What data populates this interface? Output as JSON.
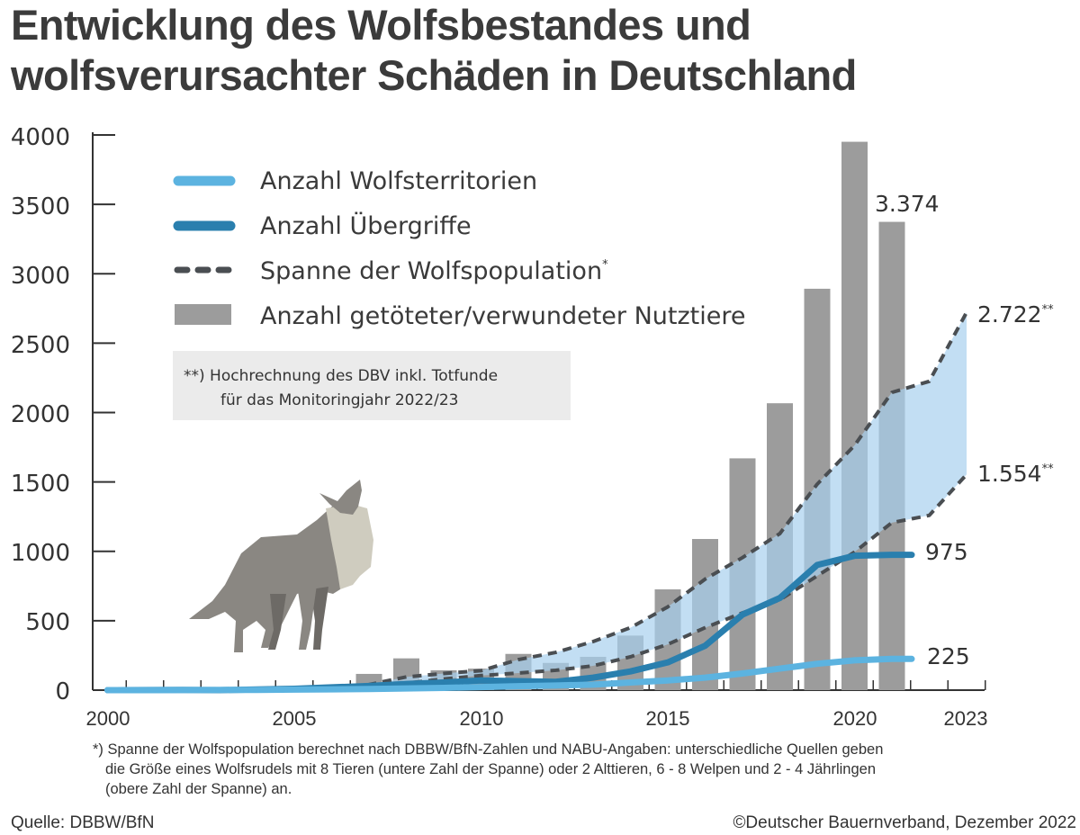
{
  "chart_data": {
    "type": "bar",
    "title": "Entwicklung des Wolfsbestandes und wolfsverursachter Schäden in Deutschland",
    "title_lines": [
      "Entwicklung des Wolfsbestandes und",
      "wolfsverursachter Schäden in Deutschland"
    ],
    "xlabel": "",
    "ylabel": "",
    "ylim": [
      0,
      4000
    ],
    "y_ticks": [
      "0",
      "500",
      "1000",
      "1500",
      "2000",
      "2500",
      "3000",
      "3500",
      "4000"
    ],
    "x_range": [
      2000,
      2023
    ],
    "x_ticks": [
      "2000",
      "2005",
      "2010",
      "2015",
      "2020",
      "2023"
    ],
    "grid": false,
    "legend_position": "top-left",
    "series": [
      {
        "name": "Anzahl Wolfsterritorien",
        "type": "line",
        "color": "#5cb3e0",
        "x": [
          2000,
          2002,
          2004,
          2005,
          2006,
          2007,
          2008,
          2009,
          2010,
          2011,
          2012,
          2013,
          2014,
          2015,
          2016,
          2017,
          2018,
          2019,
          2020,
          2021
        ],
        "values": [
          0,
          1,
          2,
          4,
          6,
          8,
          12,
          16,
          22,
          28,
          33,
          40,
          55,
          70,
          90,
          120,
          155,
          190,
          215,
          225
        ]
      },
      {
        "name": "Anzahl Übergriffe",
        "type": "line",
        "color": "#2a7fae",
        "x": [
          2000,
          2002,
          2003,
          2004,
          2005,
          2006,
          2007,
          2008,
          2009,
          2010,
          2011,
          2012,
          2013,
          2014,
          2015,
          2016,
          2017,
          2018,
          2019,
          2020,
          2021
        ],
        "values": [
          0,
          2,
          0,
          5,
          10,
          20,
          30,
          45,
          55,
          70,
          65,
          60,
          90,
          135,
          200,
          320,
          544,
          664,
          902,
          968,
          975
        ]
      },
      {
        "name": "Spanne der Wolfspopulation",
        "type": "line-range-upper",
        "color": "#4a4e52",
        "x": [
          2000,
          2003,
          2004,
          2005,
          2006,
          2007,
          2008,
          2009,
          2010,
          2011,
          2012,
          2013,
          2014,
          2015,
          2016,
          2017,
          2018,
          2019,
          2020,
          2021,
          2022,
          2023
        ],
        "values": [
          0,
          0,
          5,
          10,
          20,
          40,
          95,
          120,
          140,
          220,
          272,
          350,
          450,
          600,
          800,
          955,
          1128,
          1484,
          1763,
          2145,
          2225,
          2722
        ]
      },
      {
        "name": "Spanne der Wolfspopulation",
        "type": "line-range-lower",
        "color": "#4a4e52",
        "x": [
          2000,
          2003,
          2004,
          2005,
          2006,
          2007,
          2008,
          2009,
          2010,
          2011,
          2012,
          2013,
          2014,
          2015,
          2016,
          2017,
          2018,
          2019,
          2020,
          2021,
          2022,
          2023
        ],
        "values": [
          0,
          0,
          2,
          5,
          10,
          20,
          50,
          80,
          105,
          123,
          143,
          175,
          240,
          330,
          450,
          557,
          651,
          823,
          995,
          1207,
          1259,
          1554
        ]
      },
      {
        "name": "Anzahl getöteter/verwundeter Nutztiere",
        "type": "bar",
        "color": "#9c9c9c",
        "x": [
          2007,
          2008,
          2009,
          2010,
          2011,
          2012,
          2013,
          2014,
          2015,
          2016,
          2017,
          2018,
          2019,
          2020,
          2021
        ],
        "values": [
          117,
          229,
          143,
          155,
          261,
          196,
          240,
          393,
          726,
          1089,
          1670,
          2067,
          2892,
          3951,
          3374
        ]
      }
    ],
    "range_fill_color": "#a8d0ee",
    "legend": [
      {
        "label": "Anzahl Wolfsterritorien",
        "marker": "line-light-blue"
      },
      {
        "label": "Anzahl Übergriffe",
        "marker": "line-dark-blue"
      },
      {
        "label": "Spanne der Wolfspopulation",
        "sup": "*",
        "marker": "dashed-line"
      },
      {
        "label": "Anzahl getöteter/verwundeter Nutztiere",
        "marker": "gray-bar"
      }
    ],
    "annotations": {
      "bars_2021": "3.374",
      "upper_2023": "2.722",
      "lower_2023": "1.554",
      "estimate_mark": "**",
      "uebergriffe_2021": "975",
      "territorien_2021": "225"
    },
    "note_box": {
      "line1": "**) Hochrechnung des DBV inkl. Totfunde",
      "line2": "für das Monitoringjahr 2022/23"
    }
  },
  "footnote": {
    "line1": "*) Spanne der Wolfspopulation berechnet nach DBBW/BfN-Zahlen und NABU-Angaben: unterschiedliche Quellen geben",
    "line2": "die Größe eines Wolfsrudels mit 8 Tieren (untere Zahl der Spanne) oder 2 Alttieren, 6 - 8 Welpen und 2 - 4 Jährlingen",
    "line3": "(obere Zahl der Spanne) an."
  },
  "source": "Quelle: DBBW/BfN",
  "copyright": "©Deutscher Bauernverband, Dezember 2022",
  "illustration": "wolf-howling"
}
